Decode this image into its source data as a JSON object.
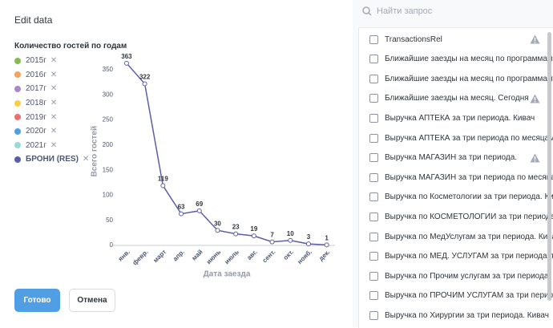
{
  "header": {
    "title": "Edit data"
  },
  "legend": {
    "title": "Количество гостей по годам",
    "items": [
      {
        "name": "2015г",
        "color": "#84bb4c"
      },
      {
        "name": "2016г",
        "color": "#f9a05b"
      },
      {
        "name": "2017г",
        "color": "#a989c5"
      },
      {
        "name": "2018г",
        "color": "#f9cf48"
      },
      {
        "name": "2019г",
        "color": "#ed6e6e"
      },
      {
        "name": "2020г",
        "color": "#509ee3"
      },
      {
        "name": "2021г",
        "color": "#98d9d9"
      },
      {
        "name": "БРОНИ (RES)",
        "color": "#5b5ea6"
      }
    ]
  },
  "chart_data": {
    "type": "line",
    "categories": [
      "янв.",
      "февр.",
      "март",
      "апр.",
      "май",
      "июнь",
      "июль",
      "авг.",
      "сент.",
      "окт.",
      "нояб.",
      "дек."
    ],
    "series": [
      {
        "name": "БРОНИ (RES)",
        "color": "#5b5ea6",
        "values": [
          363,
          322,
          119,
          63,
          69,
          30,
          23,
          19,
          7,
          10,
          3,
          1
        ]
      }
    ],
    "ylim": [
      0,
      375
    ],
    "yticks": [
      0,
      50,
      100,
      150,
      200,
      250,
      300,
      350
    ],
    "ylabel": "Всего гостей",
    "xlabel": "Дата заезда"
  },
  "buttons": {
    "done": "Готово",
    "cancel": "Отмена"
  },
  "search": {
    "placeholder": "Найти запрос"
  },
  "list": [
    {
      "label": "TransactionsRel",
      "warning": true
    },
    {
      "label": "Ближайшие заезды на месяц по программам. Н",
      "warning": false
    },
    {
      "label": "Ближайшие заезды на месяц по программам Р",
      "warning": false
    },
    {
      "label": "Ближайшие заезды на месяц. Сегодня",
      "warning": true
    },
    {
      "label": "Выручка АПТЕКА за три периода. Кивач",
      "warning": false
    },
    {
      "label": "Выручка АПТЕКА за три периода по месяцам. I",
      "warning": false
    },
    {
      "label": "Выручка МАГАЗИН за три периода.",
      "warning": true
    },
    {
      "label": "Выручка МАГАЗИН за три периода по месяцам",
      "warning": false
    },
    {
      "label": "Выручка по Косметологии за три периода. Кива",
      "warning": false
    },
    {
      "label": "Выручка по КОСМЕТОЛОГИИ за три периода п",
      "warning": false
    },
    {
      "label": "Выручка по МедУслугам за три периода. Кивач",
      "warning": false
    },
    {
      "label": "Выручка по МЕД. УСЛУГАМ за три периода по м",
      "warning": false
    },
    {
      "label": "Выручка по Прочим услугам за три периода. К",
      "warning": false
    },
    {
      "label": "Выручка по ПРОЧИМ УСЛУГАМ за три периода",
      "warning": false
    },
    {
      "label": "Выручка по Хирургии за три периода. Кивач",
      "warning": false
    }
  ]
}
